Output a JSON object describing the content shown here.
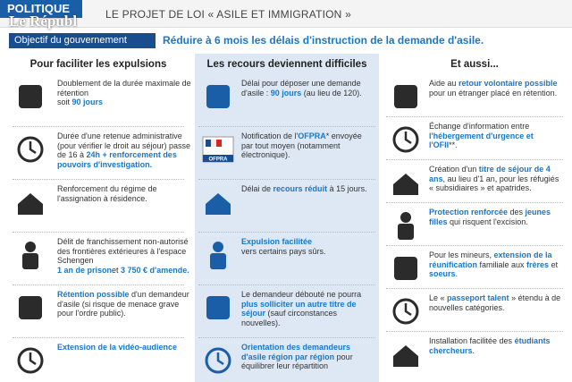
{
  "header": {
    "section": "POLITIQUE",
    "logo": "Le Républ",
    "title": "LE PROJET DE LOI « ASILE ET IMMIGRATION »",
    "objective_label": "Objectif du gouvernement",
    "objective": "Réduire à 6 mois les délais d'instruction de la demande d'asile."
  },
  "columns": [
    {
      "title": "Pour faciliter les expulsions",
      "items": [
        [
          "Doublement de la durée maximale de rétention",
          "soit ",
          "90 jours"
        ],
        [
          "Durée d'une retenue administrative (pour vérifier le droit au séjour) passe de 16 à ",
          "24h + renforcement des pouvoirs d'investigation."
        ],
        [
          "Renforcement du régime de l'assignation à résidence."
        ],
        [
          "Délit de franchissement non-autorisé des frontières extérieures à l'espace Schengen",
          "1 an de prison",
          "et ",
          "3 750 € d'amende."
        ],
        [
          "Rétention possible",
          " d'un demandeur d'asile (si risque de menace grave pour l'ordre public)."
        ],
        [
          "Extension de la vidéo-audience"
        ]
      ]
    },
    {
      "title": "Les recours deviennent difficiles",
      "items": [
        [
          "Délai pour déposer une demande d'asile : ",
          "90 jours",
          " (au lieu de 120)."
        ],
        [
          "Notification de l'",
          "OFPRA",
          "* envoyée par tout moyen (notamment électronique)."
        ],
        [
          "Délai de ",
          "recours réduit",
          " à 15 jours."
        ],
        [
          "Expulsion facilitée",
          " vers certains pays sûrs."
        ],
        [
          "Le demandeur débouté ne pourra ",
          "plus solliciter un autre titre de séjour",
          " (sauf circonstances nouvelles)."
        ],
        [
          "Orientation des demandeurs d'asile région par région",
          " pour équilibrer leur répartition"
        ]
      ],
      "icon_label": "OFPRA"
    },
    {
      "title": "Et aussi...",
      "items": [
        [
          "Aide au ",
          "retour volontaire possible",
          " pour un étranger placé en rétention."
        ],
        [
          "Échange d'information entre ",
          "l'hébergement d'urgence et l'OFII",
          "**."
        ],
        [
          "Création d'un ",
          "titre de séjour de 4 ans",
          ", au lieu d'1 an, pour les réfugiés « subsidiaires » et apatrides."
        ],
        [
          "Protection renforcée",
          " des ",
          "jeunes filles",
          " qui risquent l'excision."
        ],
        [
          "Pour les mineurs, ",
          "extension de la réunification",
          " familiale aux ",
          "frères",
          " et ",
          "soeurs",
          "."
        ],
        [
          "Le « ",
          "passeport talent",
          " » étendu à de nouvelles catégories."
        ],
        [
          "Installation facilitée des ",
          "étudiants chercheurs",
          "."
        ]
      ]
    }
  ]
}
